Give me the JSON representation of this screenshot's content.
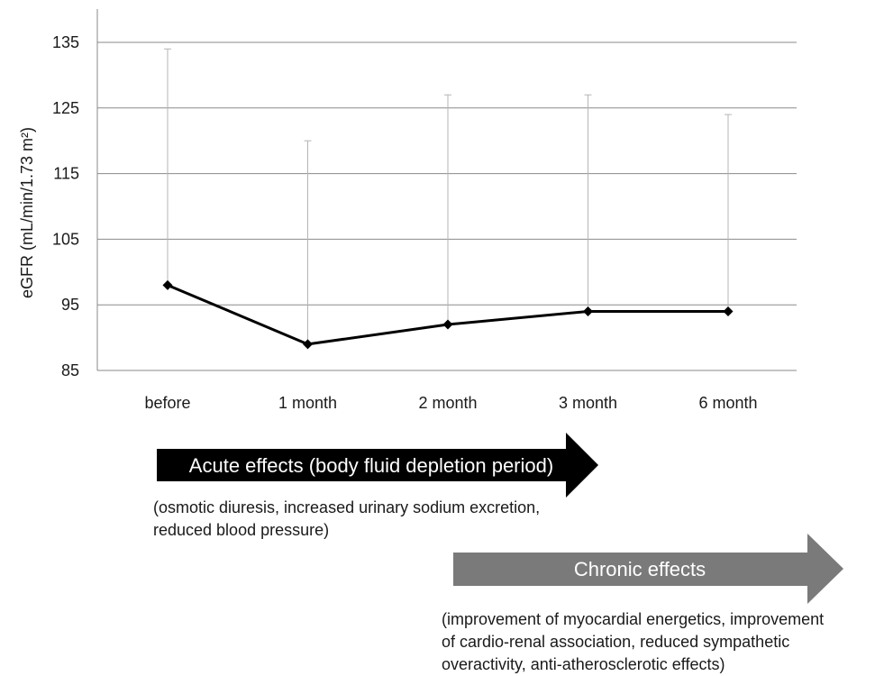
{
  "chart_data": {
    "type": "line",
    "categories": [
      "before",
      "1 month",
      "2 month",
      "3 month",
      "6 month"
    ],
    "series": [
      {
        "values": [
          98,
          89,
          92,
          94,
          94
        ],
        "error_upper": [
          134,
          120,
          127,
          127,
          124
        ]
      }
    ],
    "ylabel": "eGFR (mL/min/1.73 m²)",
    "ylim": [
      85,
      140
    ],
    "yticks": [
      85,
      95,
      105,
      115,
      125,
      135
    ],
    "grid": true,
    "line_color": "#000000",
    "marker": "diamond"
  },
  "annotations": {
    "acute": {
      "label": "Acute effects (body fluid depletion period)",
      "note": "(osmotic diuresis, increased urinary sodium excretion,\nreduced blood pressure)",
      "color": "#000000",
      "text_color": "#ffffff"
    },
    "chronic": {
      "label": "Chronic effects",
      "note": "(improvement of myocardial energetics, improvement\nof cardio-renal association, reduced sympathetic\noveractivity, anti-atherosclerotic effects)",
      "color": "#7a7a7a",
      "text_color": "#ffffff"
    }
  }
}
